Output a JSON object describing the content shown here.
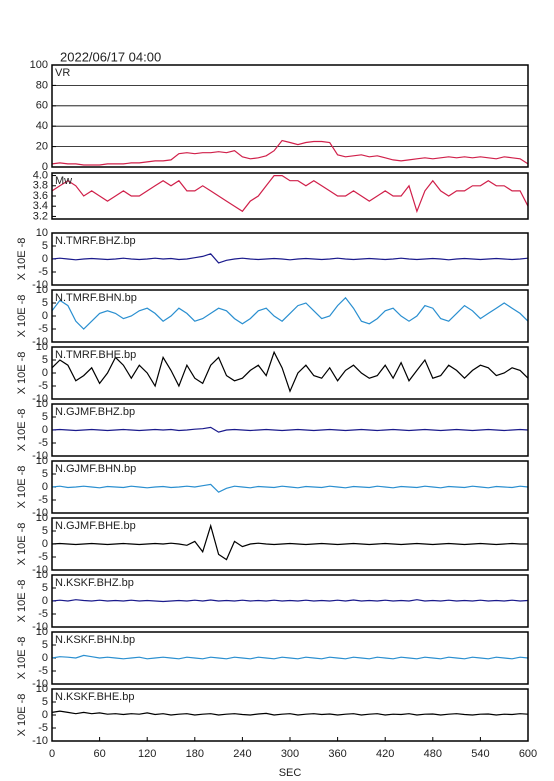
{
  "chart_data": {
    "type": "line",
    "title": "2022/06/17 04:00",
    "xlabel": "SEC",
    "xlim": [
      0,
      600
    ],
    "xticks": [
      0,
      60,
      120,
      180,
      240,
      300,
      360,
      420,
      480,
      540,
      600
    ],
    "x": [
      0,
      10,
      20,
      30,
      40,
      50,
      60,
      70,
      80,
      90,
      100,
      110,
      120,
      130,
      140,
      150,
      160,
      170,
      180,
      190,
      200,
      210,
      220,
      230,
      240,
      250,
      260,
      270,
      280,
      290,
      300,
      310,
      320,
      330,
      340,
      350,
      360,
      370,
      380,
      390,
      400,
      410,
      420,
      430,
      440,
      450,
      460,
      470,
      480,
      490,
      500,
      510,
      520,
      530,
      540,
      550,
      560,
      570,
      580,
      590,
      600
    ],
    "panels": [
      {
        "name": "VR",
        "color": "#d0204a",
        "grid": true,
        "ylim": [
          0,
          100
        ],
        "yticks": [
          0,
          20,
          40,
          60,
          80,
          100
        ],
        "values": [
          3,
          4,
          3,
          3,
          2,
          2,
          2,
          3,
          3,
          3,
          4,
          4,
          5,
          6,
          6,
          7,
          13,
          14,
          13,
          14,
          14,
          15,
          14,
          16,
          10,
          8,
          9,
          11,
          16,
          26,
          24,
          22,
          24,
          25,
          25,
          24,
          12,
          10,
          11,
          12,
          10,
          11,
          9,
          7,
          6,
          7,
          8,
          9,
          8,
          9,
          10,
          9,
          10,
          9,
          10,
          9,
          8,
          10,
          9,
          8,
          3
        ]
      },
      {
        "name": "Mw",
        "color": "#d0204a",
        "grid": false,
        "ylim": [
          3.15,
          4.05
        ],
        "yticks": [
          3.2,
          3.4,
          3.6,
          3.8,
          {
            "value": 4,
            "label": "4.0"
          }
        ],
        "values": [
          3.7,
          3.8,
          3.9,
          3.8,
          3.6,
          3.7,
          3.6,
          3.5,
          3.6,
          3.7,
          3.6,
          3.6,
          3.7,
          3.8,
          3.9,
          3.8,
          3.9,
          3.7,
          3.7,
          3.8,
          3.7,
          3.6,
          3.5,
          3.4,
          3.3,
          3.5,
          3.6,
          3.8,
          4.0,
          4.0,
          3.9,
          3.9,
          3.8,
          3.9,
          3.8,
          3.7,
          3.6,
          3.6,
          3.7,
          3.6,
          3.5,
          3.6,
          3.7,
          3.6,
          3.6,
          3.8,
          3.3,
          3.7,
          3.9,
          3.7,
          3.6,
          3.7,
          3.7,
          3.8,
          3.8,
          3.9,
          3.8,
          3.8,
          3.7,
          3.7,
          3.4
        ]
      },
      {
        "name": "N.TMRF.BHZ.bp",
        "ylabel": "X 10E -8",
        "color": "#1a1a8c",
        "grid": false,
        "ylim": [
          -10,
          10
        ],
        "yticks": [
          -10,
          -5,
          0,
          5,
          10
        ],
        "values": [
          0,
          0.3,
          0,
          -0.3,
          0,
          0.2,
          0,
          -0.2,
          0,
          0.3,
          0,
          -0.2,
          0,
          0.3,
          0,
          0.2,
          -0.2,
          0,
          0.5,
          1,
          2,
          -1.5,
          -0.5,
          0,
          0.3,
          0,
          -0.2,
          0,
          0.2,
          0,
          -0.3,
          0,
          0.2,
          0,
          -0.2,
          0,
          0.3,
          0,
          -0.2,
          0,
          0.2,
          0,
          -0.2,
          0,
          0.3,
          0,
          -0.2,
          0,
          0.2,
          0,
          -0.3,
          0,
          0.2,
          0,
          -0.2,
          0,
          0.2,
          0,
          -0.2,
          0,
          0.3
        ]
      },
      {
        "name": "N.TMRF.BHN.bp",
        "ylabel": "X 10E -8",
        "color": "#2a8fd0",
        "grid": false,
        "ylim": [
          -10,
          10
        ],
        "yticks": [
          -10,
          -5,
          0,
          5,
          10
        ],
        "values": [
          2,
          6,
          4,
          -2,
          -5,
          -2,
          1,
          2,
          1,
          -1,
          0,
          2,
          3,
          1,
          -2,
          0,
          3,
          1,
          -2,
          -1,
          1,
          3,
          2,
          -1,
          -3,
          -1,
          2,
          3,
          0,
          -2,
          1,
          4,
          5,
          2,
          -1,
          0,
          4,
          7,
          3,
          -2,
          -3,
          -1,
          2,
          3,
          0,
          -2,
          0,
          4,
          3,
          -1,
          -2,
          1,
          4,
          2,
          -1,
          1,
          3,
          5,
          3,
          1,
          -2
        ]
      },
      {
        "name": "N.TMRF.BHE.bp",
        "ylabel": "X 10E -8",
        "color": "#000000",
        "grid": false,
        "ylim": [
          -10,
          10
        ],
        "yticks": [
          -10,
          -5,
          0,
          5,
          10
        ],
        "values": [
          2,
          5,
          3,
          -3,
          -1,
          2,
          -4,
          0,
          6,
          3,
          -2,
          3,
          0,
          -5,
          6,
          1,
          -5,
          3,
          -2,
          -4,
          3,
          6,
          -1,
          -3,
          -2,
          1,
          3,
          -1,
          8,
          2,
          -7,
          0,
          3,
          -1,
          -2,
          2,
          -3,
          1,
          3,
          0,
          -2,
          -1,
          3,
          -2,
          4,
          -3,
          1,
          5,
          -2,
          -1,
          3,
          1,
          -2,
          1,
          3,
          2,
          -1,
          0,
          2,
          1,
          -2
        ]
      },
      {
        "name": "N.GJMF.BHZ.bp",
        "ylabel": "X 10E -8",
        "color": "#1a1a8c",
        "grid": false,
        "ylim": [
          -10,
          10
        ],
        "yticks": [
          -10,
          -5,
          0,
          5,
          10
        ],
        "values": [
          0,
          0.2,
          0,
          -0.2,
          0,
          0.2,
          0,
          -0.2,
          0,
          0.2,
          0,
          -0.2,
          0,
          0.2,
          0,
          0.2,
          -0.2,
          0,
          0.3,
          0.5,
          1,
          -0.8,
          0,
          0.2,
          0,
          -0.2,
          0,
          0.2,
          0,
          -0.2,
          0,
          0.2,
          0,
          -0.2,
          0,
          0.2,
          0,
          -0.2,
          0,
          0.2,
          0,
          -0.2,
          0,
          0.2,
          0,
          -0.2,
          0,
          0.2,
          0,
          -0.2,
          0,
          0.2,
          0,
          -0.2,
          0,
          0.2,
          0,
          -0.2,
          0,
          0.2,
          0
        ]
      },
      {
        "name": "N.GJMF.BHN.bp",
        "ylabel": "X 10E -8",
        "color": "#2a8fd0",
        "grid": false,
        "ylim": [
          -10,
          10
        ],
        "yticks": [
          -10,
          -5,
          0,
          5,
          10
        ],
        "values": [
          0,
          0.3,
          -0.2,
          0,
          0.3,
          0,
          -0.3,
          0.2,
          0,
          -0.2,
          0.3,
          0,
          -0.3,
          0,
          0.2,
          -0.2,
          0,
          0.3,
          0,
          0.5,
          1,
          -2,
          -0.5,
          0.3,
          0,
          -0.3,
          0.2,
          0,
          -0.2,
          0.3,
          0,
          -0.3,
          0.2,
          0,
          -0.2,
          0.3,
          0,
          -0.3,
          0.2,
          0,
          -0.2,
          0.3,
          0,
          -0.3,
          0.2,
          0,
          -0.2,
          0.3,
          0,
          -0.3,
          0.2,
          0,
          -0.2,
          0.3,
          0,
          -0.3,
          0.2,
          0,
          -0.2,
          0.3,
          0
        ]
      },
      {
        "name": "N.GJMF.BHE.bp",
        "ylabel": "X 10E -8",
        "color": "#000000",
        "grid": false,
        "ylim": [
          -10,
          10
        ],
        "yticks": [
          -10,
          -5,
          0,
          5,
          10
        ],
        "values": [
          0,
          0.2,
          0,
          -0.2,
          0,
          0.2,
          0,
          -0.2,
          0,
          0.2,
          0,
          -0.2,
          0,
          0.2,
          0,
          0.3,
          0,
          -0.5,
          1,
          -3,
          7,
          -4,
          -6,
          1,
          -1,
          0,
          0.3,
          0,
          -0.2,
          0,
          0.2,
          0,
          -0.2,
          0,
          0.2,
          0,
          -0.2,
          0,
          0.2,
          0,
          -0.2,
          0,
          0.2,
          0,
          -0.2,
          0,
          0.2,
          0,
          -0.2,
          0,
          0.2,
          0,
          -0.2,
          0,
          0.2,
          0,
          -0.2,
          0,
          0.2,
          0,
          0
        ]
      },
      {
        "name": "N.KSKF.BHZ.bp",
        "ylabel": "X 10E -8",
        "color": "#1a1a8c",
        "grid": false,
        "ylim": [
          -10,
          10
        ],
        "yticks": [
          -10,
          -5,
          0,
          5,
          10
        ],
        "values": [
          0,
          0.3,
          0,
          0.5,
          0.2,
          0,
          0.3,
          0,
          0.2,
          0,
          0.3,
          0,
          0.2,
          0,
          -0.2,
          0,
          0.2,
          0,
          0.3,
          0,
          0.4,
          0,
          0.2,
          0,
          0.3,
          0,
          0.2,
          0,
          0.3,
          0,
          0.2,
          0,
          0.3,
          0,
          0.2,
          0,
          0.3,
          0,
          0.4,
          0,
          0.2,
          0,
          0.3,
          0,
          0.2,
          0,
          0.5,
          0,
          0.2,
          0,
          0.3,
          0,
          0.2,
          0,
          0.3,
          0,
          0.2,
          0,
          0.3,
          0,
          0.2
        ]
      },
      {
        "name": "N.KSKF.BHN.bp",
        "ylabel": "X 10E -8",
        "color": "#2a8fd0",
        "grid": false,
        "ylim": [
          -10,
          10
        ],
        "yticks": [
          -10,
          -5,
          0,
          5,
          10
        ],
        "values": [
          0,
          0.5,
          0.3,
          0,
          1,
          0.5,
          0,
          0.3,
          0,
          -0.3,
          0,
          0.3,
          -0.3,
          0,
          0.3,
          0,
          -0.3,
          0.3,
          0,
          -0.3,
          0.3,
          0,
          -0.3,
          0.3,
          0,
          -0.3,
          0.3,
          0,
          -0.3,
          0.3,
          0,
          -0.3,
          0.3,
          0,
          -0.3,
          0.3,
          0,
          -0.3,
          0.3,
          0,
          -0.3,
          0.3,
          0,
          -0.3,
          0.3,
          0,
          -0.3,
          0.3,
          0,
          -0.3,
          0.3,
          0,
          -0.3,
          0.3,
          0,
          -0.3,
          0.3,
          0,
          -0.3,
          0.3,
          0
        ]
      },
      {
        "name": "N.KSKF.BHE.bp",
        "ylabel": "X 10E -8",
        "color": "#000000",
        "grid": false,
        "ylim": [
          -10,
          10
        ],
        "yticks": [
          -10,
          -5,
          0,
          5,
          10
        ],
        "values": [
          1,
          1.5,
          1,
          0.5,
          1,
          0.5,
          0.8,
          0.3,
          0.5,
          0.2,
          0.5,
          0.3,
          0.8,
          0.2,
          0.5,
          0,
          0.3,
          0.5,
          0,
          0.3,
          0.5,
          0,
          0.3,
          0.5,
          0.2,
          0,
          0.4,
          0.6,
          0,
          0.3,
          0.5,
          0,
          0.3,
          0.5,
          0.2,
          0.4,
          0,
          0.3,
          0.5,
          0,
          0.3,
          0.5,
          0,
          0.3,
          0.2,
          0.5,
          0,
          0.3,
          0.4,
          0,
          0.3,
          0.5,
          0.2,
          0,
          0.3,
          0.4,
          0,
          0.3,
          0.2,
          0.5,
          0.3
        ]
      }
    ]
  }
}
